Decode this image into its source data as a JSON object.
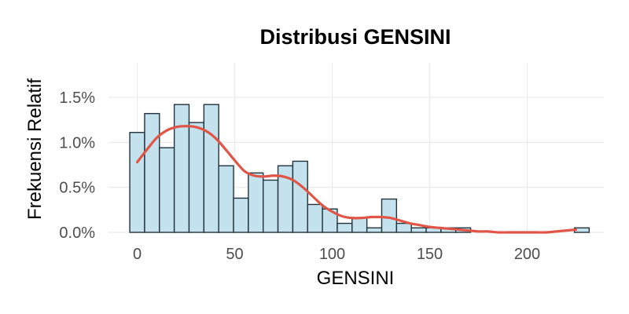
{
  "chart_data": {
    "type": "histogram",
    "title": "Distribusi GENSINI",
    "xlabel": "GENSINI",
    "ylabel": "Frekuensi Relatif",
    "xlim": [
      -5,
      230
    ],
    "ylim": [
      0,
      0.0185
    ],
    "x_ticks": [
      0,
      50,
      100,
      150,
      200
    ],
    "x_tick_labels": [
      "0",
      "50",
      "100",
      "150",
      "200"
    ],
    "y_ticks": [
      0,
      0.005,
      0.01,
      0.015
    ],
    "y_tick_labels": [
      "0.0%",
      "0.5%",
      "1.0%",
      "1.5%"
    ],
    "bin_width": 7.6,
    "bin_starts": [
      -3.8,
      3.8,
      11.4,
      19.0,
      26.6,
      34.2,
      41.8,
      49.4,
      57.0,
      64.6,
      72.2,
      79.8,
      87.4,
      95.0,
      102.6,
      110.2,
      117.8,
      125.4,
      133.0,
      140.6,
      148.2,
      155.8,
      163.4,
      171.0,
      178.6,
      186.2,
      193.8,
      201.4,
      209.0,
      216.6,
      224.2
    ],
    "values": [
      0.0111,
      0.0132,
      0.0094,
      0.0142,
      0.0122,
      0.0142,
      0.0074,
      0.0038,
      0.0066,
      0.0058,
      0.0074,
      0.0079,
      0.0031,
      0.0026,
      0.001,
      0.0016,
      0.0005,
      0.0037,
      0.001,
      0.0005,
      0.0005,
      0.0005,
      0.0005,
      0.0,
      0.0,
      0.0,
      0.0,
      0.0,
      0.0,
      0.0,
      0.0005
    ],
    "bar_color": "#c3e2ed",
    "bar_edge_color": "#23323c",
    "density": {
      "color": "#e05545",
      "x": [
        0,
        5,
        10,
        15,
        20,
        25,
        30,
        35,
        40,
        45,
        50,
        55,
        60,
        65,
        70,
        75,
        80,
        85,
        90,
        95,
        100,
        105,
        110,
        115,
        120,
        125,
        130,
        135,
        140,
        145,
        150,
        155,
        160,
        165,
        170,
        175,
        180,
        185,
        190,
        195,
        200,
        205,
        210,
        215,
        220,
        225
      ],
      "y": [
        0.0078,
        0.0092,
        0.0105,
        0.0113,
        0.0117,
        0.0118,
        0.0117,
        0.0113,
        0.0105,
        0.0093,
        0.008,
        0.0068,
        0.0063,
        0.0062,
        0.0063,
        0.0062,
        0.0058,
        0.005,
        0.004,
        0.003,
        0.0023,
        0.0018,
        0.0016,
        0.0016,
        0.0017,
        0.0017,
        0.0016,
        0.0013,
        0.001,
        0.0008,
        0.0006,
        0.0005,
        0.0004,
        0.0003,
        0.0002,
        0.0001,
        0.0001,
        0.0,
        0.0,
        0.0,
        0.0,
        0.0,
        0.0,
        0.0001,
        0.0002,
        0.0003
      ]
    }
  }
}
